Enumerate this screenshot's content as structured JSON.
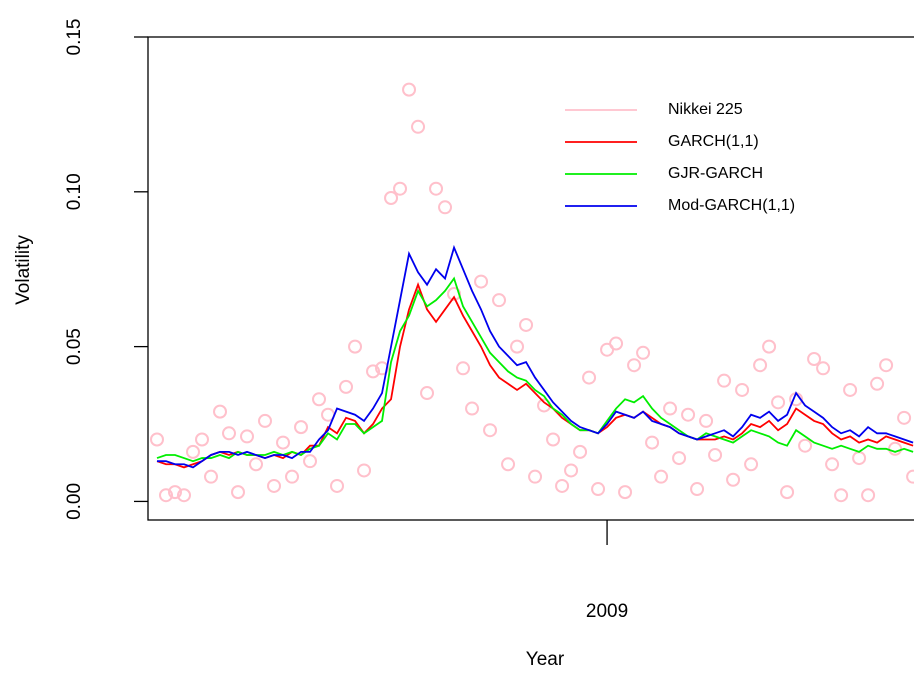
{
  "chart_data": {
    "type": "line",
    "x_label": "Year",
    "y_label": "Volatility",
    "xlim": [
      2008.49,
      2009.341
    ],
    "xticks": [
      2009
    ],
    "ylim": [
      -0.006,
      0.15
    ],
    "yticks": [
      {
        "value": 0,
        "label": "0.00"
      },
      {
        "value": 0.05,
        "label": "0.05"
      },
      {
        "value": 0.1,
        "label": "0.10"
      },
      {
        "value": 0.15,
        "label": "0.15"
      }
    ],
    "legend": "topright",
    "x": [
      2008.5,
      2008.51,
      2008.52,
      2008.53,
      2008.54,
      2008.55,
      2008.56,
      2008.57,
      2008.58,
      2008.59,
      2008.6,
      2008.61,
      2008.62,
      2008.63,
      2008.64,
      2008.65,
      2008.66,
      2008.67,
      2008.68,
      2008.69,
      2008.7,
      2008.71,
      2008.72,
      2008.73,
      2008.74,
      2008.75,
      2008.76,
      2008.77,
      2008.78,
      2008.79,
      2008.8,
      2008.81,
      2008.82,
      2008.83,
      2008.84,
      2008.85,
      2008.86,
      2008.87,
      2008.88,
      2008.89,
      2008.9,
      2008.91,
      2008.92,
      2008.93,
      2008.94,
      2008.95,
      2008.96,
      2008.97,
      2008.98,
      2008.99,
      2009.0,
      2009.01,
      2009.02,
      2009.03,
      2009.04,
      2009.05,
      2009.06,
      2009.07,
      2009.08,
      2009.09,
      2009.1,
      2009.11,
      2009.12,
      2009.13,
      2009.14,
      2009.15,
      2009.16,
      2009.17,
      2009.18,
      2009.19,
      2009.2,
      2009.21,
      2009.22,
      2009.23,
      2009.24,
      2009.25,
      2009.26,
      2009.27,
      2009.28,
      2009.29,
      2009.3,
      2009.31,
      2009.32,
      2009.33,
      2009.34
    ],
    "series": [
      {
        "name": "Nikkei 225",
        "color": "#ffc0cb",
        "style": "points",
        "values": [
          0.02,
          0.002,
          0.003,
          0.002,
          0.016,
          0.02,
          0.008,
          0.029,
          0.022,
          0.003,
          0.021,
          0.012,
          0.026,
          0.005,
          0.019,
          0.008,
          0.024,
          0.013,
          0.033,
          0.028,
          0.005,
          0.037,
          0.05,
          0.01,
          0.042,
          0.043,
          0.098,
          0.101,
          0.133,
          0.121,
          0.035,
          0.101,
          0.095,
          0.067,
          0.043,
          0.03,
          0.071,
          0.023,
          0.065,
          0.012,
          0.05,
          0.057,
          0.008,
          0.031,
          0.02,
          0.005,
          0.01,
          0.016,
          0.04,
          0.004,
          0.049,
          0.051,
          0.003,
          0.044,
          0.048,
          0.019,
          0.008,
          0.03,
          0.014,
          0.028,
          0.004,
          0.026,
          0.015,
          0.039,
          0.007,
          0.036,
          0.012,
          0.044,
          0.05,
          0.032,
          0.003,
          0.033,
          0.018,
          0.046,
          0.043,
          0.012,
          0.002,
          0.036,
          0.014,
          0.002,
          0.038,
          0.044,
          0.017,
          0.027,
          0.008
        ]
      },
      {
        "name": "GARCH(1,1)",
        "color": "#ff0000",
        "style": "line",
        "values": [
          0.013,
          0.012,
          0.012,
          0.011,
          0.012,
          0.013,
          0.015,
          0.016,
          0.015,
          0.016,
          0.015,
          0.015,
          0.014,
          0.015,
          0.014,
          0.016,
          0.015,
          0.018,
          0.018,
          0.024,
          0.022,
          0.027,
          0.026,
          0.022,
          0.025,
          0.03,
          0.033,
          0.05,
          0.062,
          0.07,
          0.062,
          0.058,
          0.062,
          0.066,
          0.06,
          0.055,
          0.05,
          0.044,
          0.04,
          0.038,
          0.036,
          0.038,
          0.035,
          0.032,
          0.03,
          0.027,
          0.025,
          0.023,
          0.023,
          0.022,
          0.024,
          0.027,
          0.028,
          0.027,
          0.029,
          0.027,
          0.025,
          0.024,
          0.022,
          0.021,
          0.02,
          0.02,
          0.02,
          0.021,
          0.02,
          0.022,
          0.025,
          0.024,
          0.026,
          0.023,
          0.025,
          0.03,
          0.028,
          0.026,
          0.025,
          0.022,
          0.02,
          0.021,
          0.019,
          0.02,
          0.019,
          0.021,
          0.02,
          0.019,
          0.018
        ]
      },
      {
        "name": "GJR-GARCH",
        "color": "#00ee00",
        "style": "line",
        "values": [
          0.014,
          0.015,
          0.015,
          0.014,
          0.013,
          0.014,
          0.014,
          0.015,
          0.014,
          0.016,
          0.015,
          0.015,
          0.015,
          0.016,
          0.015,
          0.016,
          0.015,
          0.017,
          0.018,
          0.022,
          0.02,
          0.025,
          0.025,
          0.022,
          0.024,
          0.026,
          0.045,
          0.055,
          0.06,
          0.068,
          0.063,
          0.065,
          0.068,
          0.072,
          0.063,
          0.058,
          0.053,
          0.048,
          0.045,
          0.042,
          0.04,
          0.039,
          0.036,
          0.034,
          0.03,
          0.028,
          0.025,
          0.023,
          0.023,
          0.022,
          0.026,
          0.03,
          0.033,
          0.032,
          0.034,
          0.03,
          0.027,
          0.025,
          0.023,
          0.021,
          0.02,
          0.022,
          0.021,
          0.02,
          0.019,
          0.021,
          0.023,
          0.022,
          0.021,
          0.019,
          0.018,
          0.023,
          0.021,
          0.019,
          0.018,
          0.017,
          0.018,
          0.017,
          0.016,
          0.018,
          0.017,
          0.017,
          0.016,
          0.017,
          0.016
        ]
      },
      {
        "name": "Mod-GARCH(1,1)",
        "color": "#0000ee",
        "style": "line",
        "values": [
          0.013,
          0.013,
          0.012,
          0.012,
          0.011,
          0.013,
          0.015,
          0.016,
          0.016,
          0.015,
          0.016,
          0.015,
          0.014,
          0.015,
          0.015,
          0.014,
          0.016,
          0.016,
          0.02,
          0.023,
          0.03,
          0.029,
          0.028,
          0.026,
          0.03,
          0.035,
          0.05,
          0.065,
          0.08,
          0.074,
          0.07,
          0.075,
          0.072,
          0.082,
          0.075,
          0.068,
          0.062,
          0.055,
          0.05,
          0.047,
          0.044,
          0.045,
          0.04,
          0.036,
          0.032,
          0.029,
          0.026,
          0.024,
          0.023,
          0.022,
          0.025,
          0.029,
          0.028,
          0.027,
          0.029,
          0.026,
          0.025,
          0.024,
          0.022,
          0.021,
          0.02,
          0.021,
          0.022,
          0.023,
          0.021,
          0.024,
          0.028,
          0.027,
          0.029,
          0.026,
          0.028,
          0.035,
          0.031,
          0.029,
          0.027,
          0.024,
          0.022,
          0.023,
          0.021,
          0.024,
          0.022,
          0.022,
          0.021,
          0.02,
          0.019
        ]
      }
    ]
  }
}
